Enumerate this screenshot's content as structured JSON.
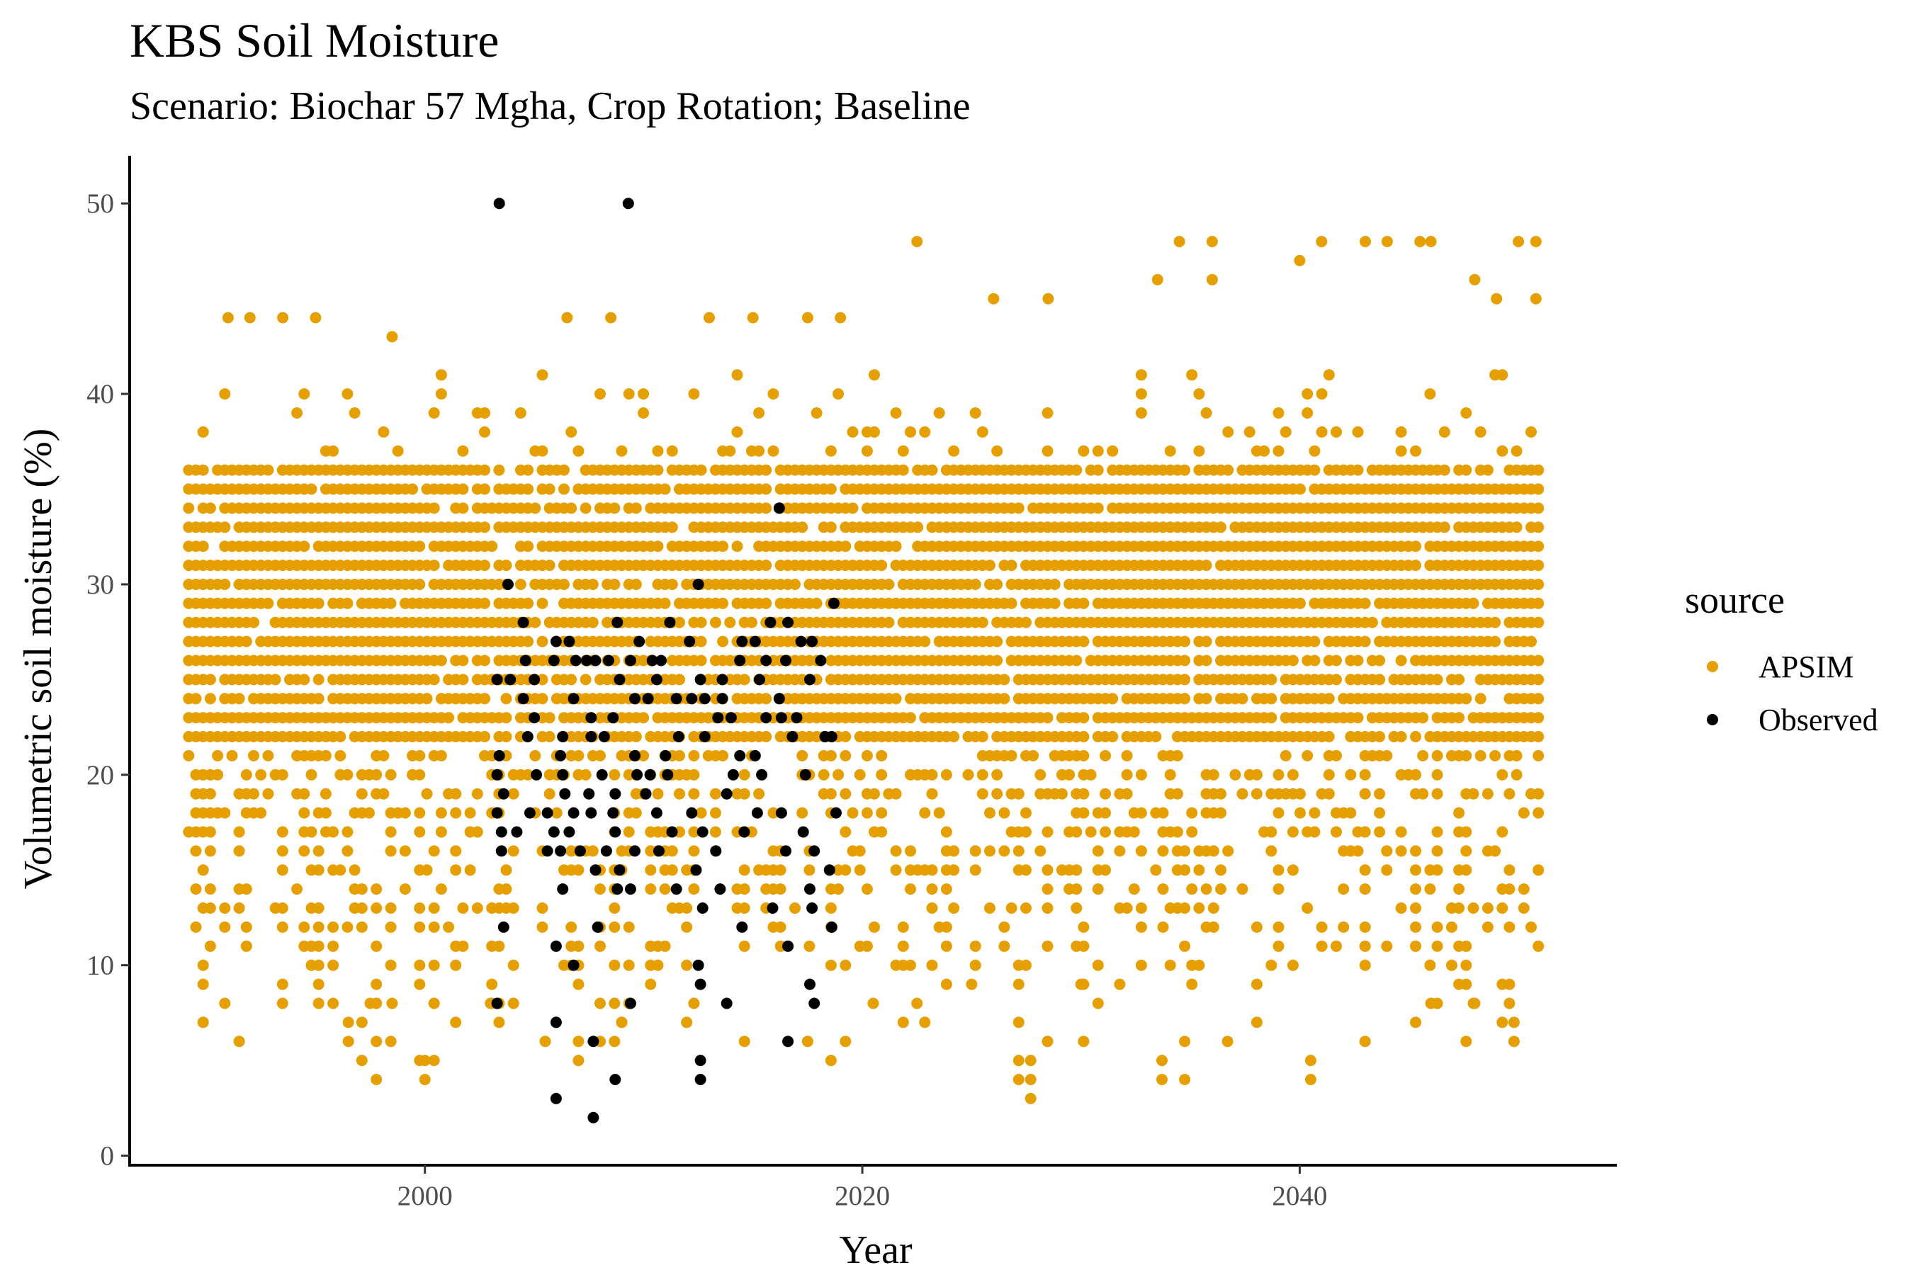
{
  "colors": {
    "apsim": "#E69F00",
    "observed": "#000000",
    "axis": "#000000",
    "tick_text": "#4d4d4d"
  },
  "chart_data": {
    "type": "scatter",
    "title": "KBS Soil Moisture",
    "subtitle": "Scenario: Biochar 57 Mgha, Crop Rotation; Baseline",
    "xlabel": "Year",
    "ylabel": "Volumetric soil moisture (%)",
    "xlim": [
      1986.5,
      2054.5
    ],
    "ylim": [
      -0.5,
      52.5
    ],
    "x_ticks": [
      2000,
      2020,
      2040
    ],
    "x_tick_labels": [
      "2000",
      "2020",
      "2040"
    ],
    "y_ticks": [
      0,
      10,
      20,
      30,
      40,
      50
    ],
    "y_tick_labels": [
      "0",
      "10",
      "20",
      "30",
      "40",
      "50"
    ],
    "grid": false,
    "legend": {
      "title": "source",
      "position": "right",
      "entries": [
        "APSIM",
        "Observed"
      ]
    },
    "series": [
      {
        "name": "APSIM",
        "note_range": {
          "x_min": 1989.2,
          "x_max": 2051.0,
          "y_min": 3,
          "y_max": 48,
          "dense_band_y": [
            22,
            36
          ]
        },
        "extreme_points": [
          [
            1991,
            44
          ],
          [
            1992,
            44
          ],
          [
            1993.5,
            44
          ],
          [
            1995,
            44
          ],
          [
            1998.5,
            43
          ],
          [
            2006.5,
            44
          ],
          [
            2008.5,
            44
          ],
          [
            2013,
            44
          ],
          [
            2015,
            44
          ],
          [
            2017.5,
            44
          ],
          [
            2019,
            44
          ],
          [
            2022.5,
            48
          ],
          [
            2026,
            45
          ],
          [
            2028.5,
            45
          ],
          [
            2033.5,
            46
          ],
          [
            2034.5,
            48
          ],
          [
            2036,
            48
          ],
          [
            2036,
            46
          ],
          [
            2040,
            47
          ],
          [
            2041,
            48
          ],
          [
            2043,
            48
          ],
          [
            2044,
            48
          ],
          [
            2045.5,
            48
          ],
          [
            2046,
            48
          ],
          [
            2048,
            46
          ],
          [
            2049,
            45
          ],
          [
            2050,
            48
          ],
          [
            2050.8,
            48
          ],
          [
            2050.8,
            45
          ],
          [
            2000,
            4
          ],
          [
            2000,
            5
          ],
          [
            1996.5,
            6
          ],
          [
            1996.5,
            7
          ],
          [
            2005.5,
            6
          ],
          [
            2009,
            7
          ],
          [
            2017.5,
            6
          ],
          [
            2022.5,
            8
          ],
          [
            2020.5,
            8
          ],
          [
            2027.7,
            3
          ],
          [
            2027.7,
            4
          ],
          [
            2027.7,
            5
          ],
          [
            2033.7,
            4
          ],
          [
            2033.7,
            5
          ],
          [
            2036.7,
            6
          ],
          [
            2040.5,
            4
          ],
          [
            2040.5,
            5
          ],
          [
            2046,
            8
          ],
          [
            2048,
            8
          ],
          [
            2049.8,
            6
          ],
          [
            2049.8,
            7
          ],
          [
            1998.5,
            8
          ],
          [
            1997.5,
            8
          ],
          [
            2003,
            8
          ],
          [
            2025,
            9
          ],
          [
            2030,
            9
          ]
        ]
      },
      {
        "name": "Observed",
        "points": [
          [
            2003.4,
            50
          ],
          [
            2009.3,
            50
          ],
          [
            2016.2,
            34
          ],
          [
            2003.8,
            30
          ],
          [
            2012.5,
            30
          ],
          [
            2018.7,
            29
          ],
          [
            2004.5,
            28
          ],
          [
            2008.8,
            28
          ],
          [
            2011.2,
            28
          ],
          [
            2015.8,
            28
          ],
          [
            2016.6,
            28
          ],
          [
            2006.0,
            27
          ],
          [
            2006.6,
            27
          ],
          [
            2009.8,
            27
          ],
          [
            2012.1,
            27
          ],
          [
            2014.5,
            27
          ],
          [
            2015.1,
            27
          ],
          [
            2017.2,
            27
          ],
          [
            2017.7,
            27
          ],
          [
            2004.6,
            26
          ],
          [
            2005.9,
            26
          ],
          [
            2006.9,
            26
          ],
          [
            2007.4,
            26
          ],
          [
            2007.8,
            26
          ],
          [
            2008.4,
            26
          ],
          [
            2009.4,
            26
          ],
          [
            2010.4,
            26
          ],
          [
            2010.8,
            26
          ],
          [
            2014.4,
            26
          ],
          [
            2015.6,
            26
          ],
          [
            2016.5,
            26
          ],
          [
            2018.1,
            26
          ],
          [
            2003.3,
            25
          ],
          [
            2003.9,
            25
          ],
          [
            2005.0,
            25
          ],
          [
            2008.9,
            25
          ],
          [
            2010.6,
            25
          ],
          [
            2012.6,
            25
          ],
          [
            2013.6,
            25
          ],
          [
            2015.3,
            25
          ],
          [
            2017.6,
            25
          ],
          [
            2004.5,
            24
          ],
          [
            2006.8,
            24
          ],
          [
            2009.6,
            24
          ],
          [
            2010.2,
            24
          ],
          [
            2011.5,
            24
          ],
          [
            2012.2,
            24
          ],
          [
            2012.8,
            24
          ],
          [
            2013.6,
            24
          ],
          [
            2016.2,
            24
          ],
          [
            2005.0,
            23
          ],
          [
            2007.6,
            23
          ],
          [
            2008.6,
            23
          ],
          [
            2013.4,
            23
          ],
          [
            2014.0,
            23
          ],
          [
            2015.6,
            23
          ],
          [
            2016.3,
            23
          ],
          [
            2017.0,
            23
          ],
          [
            2004.7,
            22
          ],
          [
            2006.3,
            22
          ],
          [
            2007.6,
            22
          ],
          [
            2008.2,
            22
          ],
          [
            2011.6,
            22
          ],
          [
            2012.8,
            22
          ],
          [
            2016.8,
            22
          ],
          [
            2018.3,
            22
          ],
          [
            2018.6,
            22
          ],
          [
            2003.4,
            21
          ],
          [
            2006.2,
            21
          ],
          [
            2009.6,
            21
          ],
          [
            2011.0,
            21
          ],
          [
            2014.4,
            21
          ],
          [
            2015.1,
            21
          ],
          [
            2003.3,
            20
          ],
          [
            2005.1,
            20
          ],
          [
            2006.3,
            20
          ],
          [
            2008.1,
            20
          ],
          [
            2009.7,
            20
          ],
          [
            2010.3,
            20
          ],
          [
            2011.1,
            20
          ],
          [
            2014.1,
            20
          ],
          [
            2015.4,
            20
          ],
          [
            2017.4,
            20
          ],
          [
            2003.6,
            19
          ],
          [
            2006.4,
            19
          ],
          [
            2007.5,
            19
          ],
          [
            2008.7,
            19
          ],
          [
            2010.1,
            19
          ],
          [
            2013.8,
            19
          ],
          [
            2003.3,
            18
          ],
          [
            2004.8,
            18
          ],
          [
            2005.6,
            18
          ],
          [
            2006.8,
            18
          ],
          [
            2007.6,
            18
          ],
          [
            2008.6,
            18
          ],
          [
            2010.6,
            18
          ],
          [
            2012.2,
            18
          ],
          [
            2015.2,
            18
          ],
          [
            2016.3,
            18
          ],
          [
            2018.8,
            18
          ],
          [
            2003.5,
            17
          ],
          [
            2004.2,
            17
          ],
          [
            2005.9,
            17
          ],
          [
            2006.6,
            17
          ],
          [
            2008.7,
            17
          ],
          [
            2011.3,
            17
          ],
          [
            2012.7,
            17
          ],
          [
            2014.6,
            17
          ],
          [
            2017.3,
            17
          ],
          [
            2003.5,
            16
          ],
          [
            2005.6,
            16
          ],
          [
            2006.2,
            16
          ],
          [
            2007.1,
            16
          ],
          [
            2008.3,
            16
          ],
          [
            2009.6,
            16
          ],
          [
            2010.7,
            16
          ],
          [
            2013.3,
            16
          ],
          [
            2016.5,
            16
          ],
          [
            2017.8,
            16
          ],
          [
            2007.8,
            15
          ],
          [
            2008.9,
            15
          ],
          [
            2012.4,
            15
          ],
          [
            2018.5,
            15
          ],
          [
            2006.3,
            14
          ],
          [
            2008.8,
            14
          ],
          [
            2009.4,
            14
          ],
          [
            2011.5,
            14
          ],
          [
            2013.5,
            14
          ],
          [
            2017.6,
            14
          ],
          [
            2012.7,
            13
          ],
          [
            2015.9,
            13
          ],
          [
            2017.7,
            13
          ],
          [
            2003.6,
            12
          ],
          [
            2007.9,
            12
          ],
          [
            2014.5,
            12
          ],
          [
            2018.6,
            12
          ],
          [
            2006.0,
            11
          ],
          [
            2016.6,
            11
          ],
          [
            2006.8,
            10
          ],
          [
            2012.5,
            10
          ],
          [
            2012.6,
            9
          ],
          [
            2017.6,
            9
          ],
          [
            2003.3,
            8
          ],
          [
            2009.4,
            8
          ],
          [
            2013.8,
            8
          ],
          [
            2017.8,
            8
          ],
          [
            2006.0,
            7
          ],
          [
            2007.7,
            6
          ],
          [
            2016.6,
            6
          ],
          [
            2012.6,
            5
          ],
          [
            2012.6,
            4
          ],
          [
            2008.7,
            4
          ],
          [
            2006.0,
            3
          ],
          [
            2007.7,
            2
          ]
        ]
      }
    ]
  }
}
